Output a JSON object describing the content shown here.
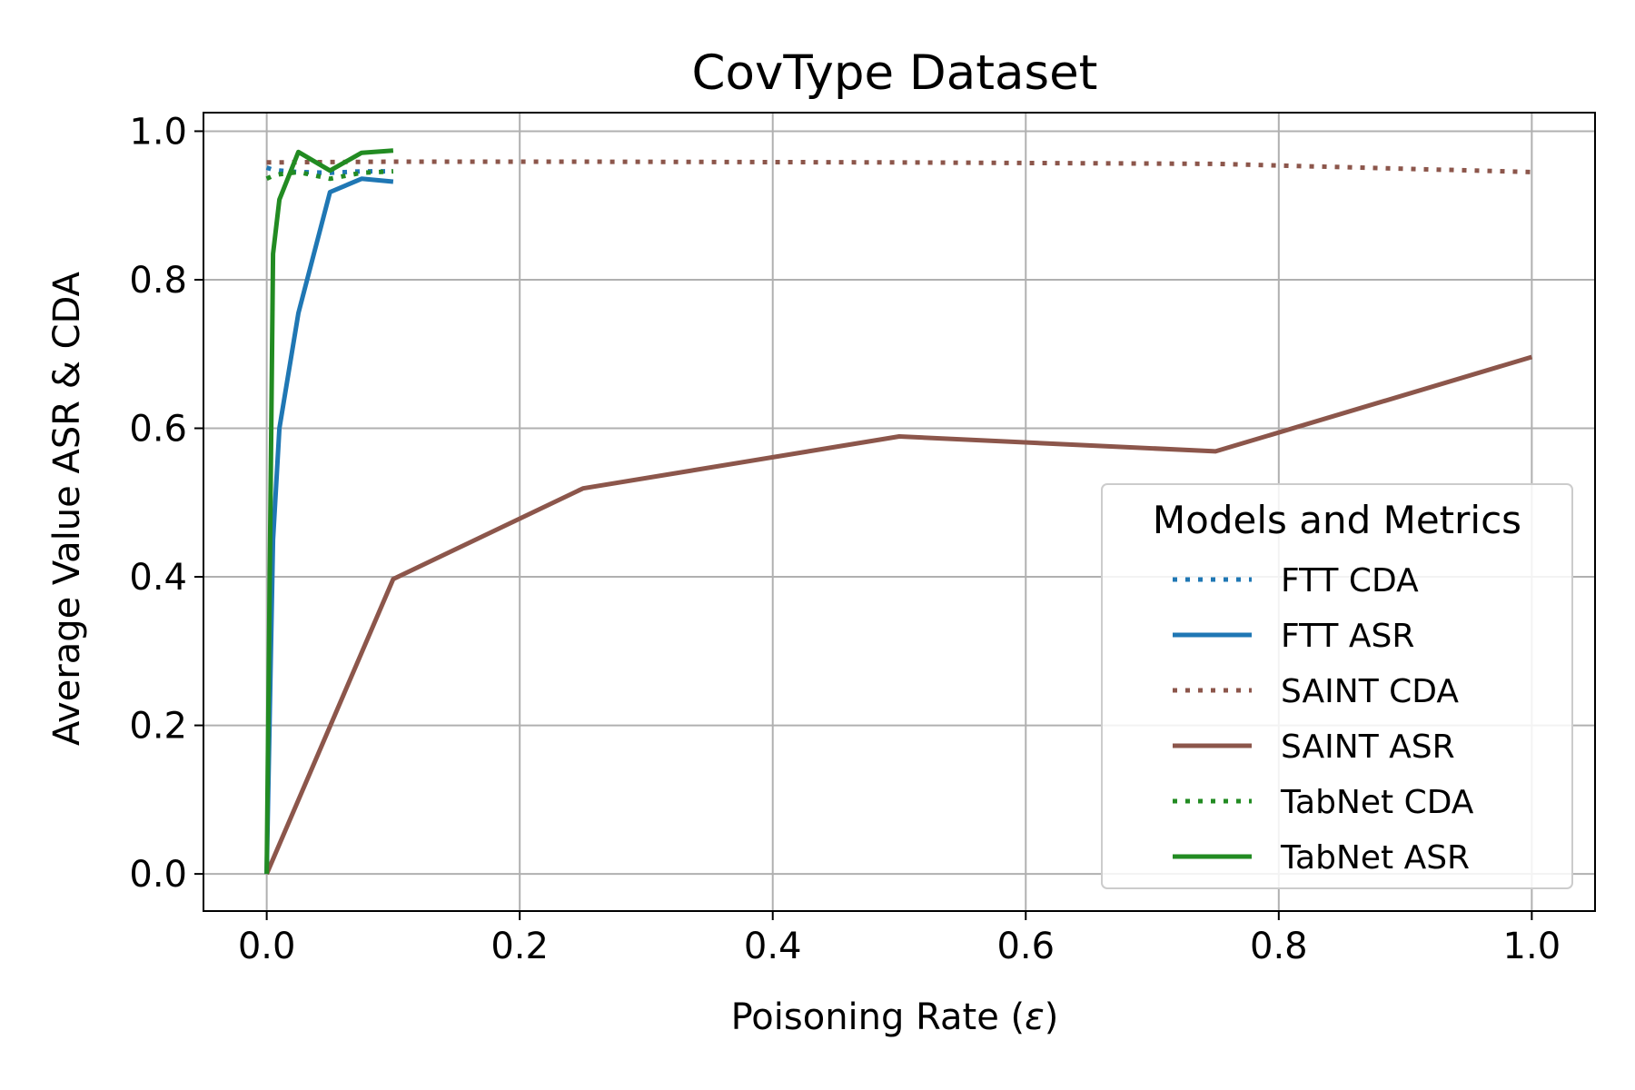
{
  "chart_data": {
    "type": "line",
    "title": "CovType Dataset",
    "xlabel_prefix": "Poisoning Rate (",
    "xlabel_symbol": "ε",
    "xlabel_suffix": ")",
    "ylabel": "Average Value ASR & CDA",
    "xlim": [
      -0.05,
      1.05
    ],
    "ylim": [
      -0.05,
      1.025
    ],
    "xticks": [
      0.0,
      0.2,
      0.4,
      0.6,
      0.8,
      1.0
    ],
    "xtick_labels": [
      "0.0",
      "0.2",
      "0.4",
      "0.6",
      "0.8",
      "1.0"
    ],
    "yticks": [
      0.0,
      0.2,
      0.4,
      0.6,
      0.8,
      1.0
    ],
    "ytick_labels": [
      "0.0",
      "0.2",
      "0.4",
      "0.6",
      "0.8",
      "1.0"
    ],
    "grid": true,
    "legend": {
      "title": "Models and Metrics",
      "placement": "lower-right"
    },
    "series": [
      {
        "name": "FTT CDA",
        "color": "#1f77b4",
        "style": "dotted",
        "x": [
          0,
          0.005,
          0.01,
          0.025,
          0.05,
          0.075,
          0.1
        ],
        "y": [
          0.951,
          0.948,
          0.947,
          0.945,
          0.944,
          0.946,
          0.946
        ]
      },
      {
        "name": "FTT ASR",
        "color": "#1f77b4",
        "style": "solid",
        "x": [
          0,
          0.005,
          0.01,
          0.025,
          0.05,
          0.075,
          0.1
        ],
        "y": [
          0.0,
          0.45,
          0.6,
          0.755,
          0.918,
          0.936,
          0.932
        ]
      },
      {
        "name": "SAINT CDA",
        "color": "#8c564b",
        "style": "dotted",
        "x": [
          0,
          0.1,
          0.25,
          0.5,
          0.75,
          1.0
        ],
        "y": [
          0.958,
          0.959,
          0.959,
          0.958,
          0.956,
          0.945
        ]
      },
      {
        "name": "SAINT ASR",
        "color": "#8c564b",
        "style": "solid",
        "x": [
          0,
          0.1,
          0.25,
          0.5,
          0.75,
          1.0
        ],
        "y": [
          0.0,
          0.397,
          0.519,
          0.589,
          0.569,
          0.696
        ]
      },
      {
        "name": "TabNet CDA",
        "color": "#228b22",
        "style": "dotted",
        "x": [
          0,
          0.005,
          0.01,
          0.025,
          0.05,
          0.075,
          0.1
        ],
        "y": [
          0.936,
          0.94,
          0.942,
          0.945,
          0.936,
          0.944,
          0.946
        ]
      },
      {
        "name": "TabNet ASR",
        "color": "#228b22",
        "style": "solid",
        "x": [
          0,
          0.005,
          0.01,
          0.025,
          0.05,
          0.075,
          0.1
        ],
        "y": [
          0.0,
          0.835,
          0.908,
          0.972,
          0.947,
          0.971,
          0.974
        ]
      }
    ]
  }
}
